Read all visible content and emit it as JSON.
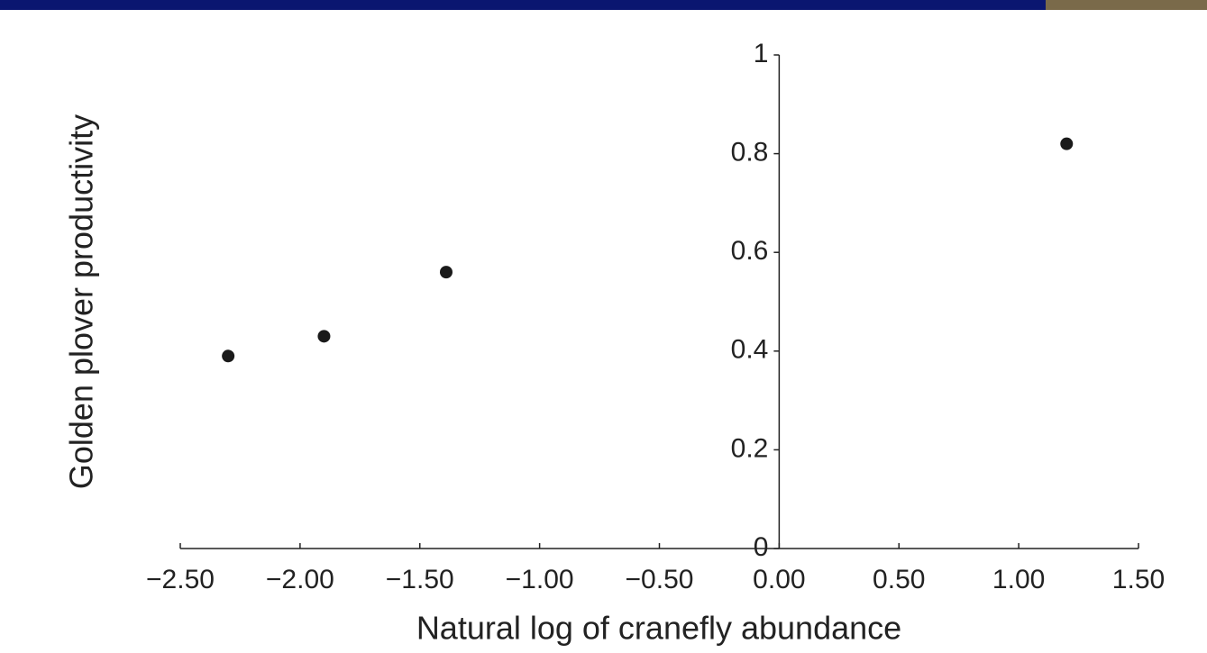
{
  "chart_data": {
    "type": "scatter",
    "xlabel": "Natural log of cranefly abundance",
    "ylabel": "Golden plover productivity",
    "x": [
      -2.3,
      -1.9,
      -1.39,
      1.2
    ],
    "values": [
      0.39,
      0.43,
      0.56,
      0.82
    ],
    "color": "#1a1a1a",
    "xlim": [
      -2.5,
      1.5
    ],
    "ylim": [
      0,
      1
    ],
    "xticks": [
      {
        "value": -2.5,
        "label": "−2.50"
      },
      {
        "value": -2.0,
        "label": "−2.00"
      },
      {
        "value": -1.5,
        "label": "−1.50"
      },
      {
        "value": -1.0,
        "label": "−1.00"
      },
      {
        "value": -0.5,
        "label": "−0.50"
      },
      {
        "value": 0,
        "label": "0.00"
      },
      {
        "value": 0.5,
        "label": "0.50"
      },
      {
        "value": 1.0,
        "label": "1.00"
      },
      {
        "value": 1.5,
        "label": "1.50"
      }
    ],
    "yticks": [
      0,
      0.2,
      0.4,
      0.6,
      0.8,
      1
    ]
  }
}
